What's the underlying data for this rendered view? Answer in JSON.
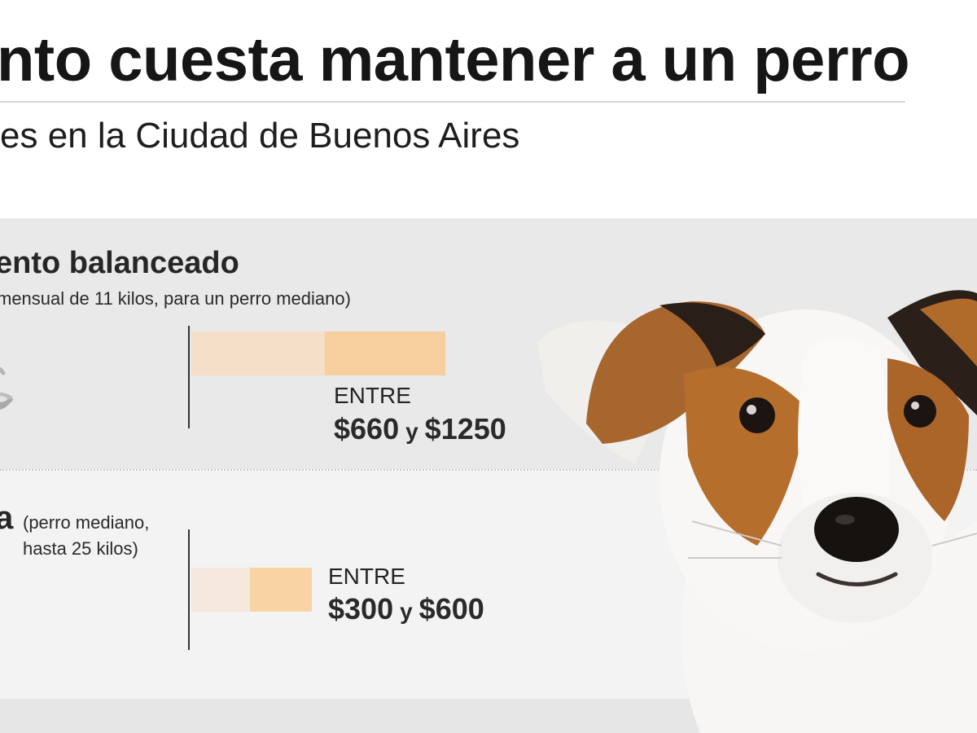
{
  "header": {
    "title": "nto cuesta mantener a un perro",
    "subtitle": "es en la Ciudad de Buenos Aires"
  },
  "sections": [
    {
      "title": "ento balanceado",
      "note": "mensual de 11 kilos, para un perro mediano)",
      "range_label": "ENTRE",
      "min": "$660",
      "conjunction": "y",
      "max": "$1250",
      "min_value": 660,
      "max_value": 1250
    },
    {
      "title": "a",
      "note_line1": "(perro mediano,",
      "note_line2": "hasta 25 kilos)",
      "range_label": "ENTRE",
      "min": "$300",
      "conjunction": "y",
      "max": "$600",
      "min_value": 300,
      "max_value": 600
    }
  ],
  "icons": {
    "food": "dog-food-bowl-icon",
    "photo": "dog-photo"
  },
  "colors": {
    "panel_food": "#e9e9e9",
    "panel_bath": "#f3f3f3",
    "bar_light": "#f5dfc8",
    "bar_dark": "#f7cf9f"
  }
}
